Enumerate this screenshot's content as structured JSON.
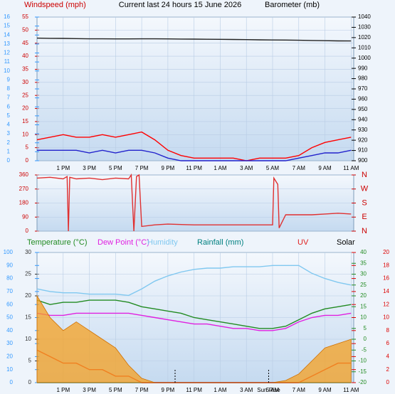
{
  "chart_data": [
    {
      "type": "line",
      "title": "Current last 24 hours 15 June 2026",
      "ylabel": "Windspeed (mph)",
      "y2label": "Barometer (mb)",
      "x": [
        0,
        1,
        2,
        3,
        4,
        5,
        6,
        7,
        8,
        9,
        10,
        11,
        12,
        13,
        14,
        15,
        16,
        17,
        18,
        19,
        20,
        21,
        22,
        23,
        24
      ],
      "xlim": [
        0,
        24.2
      ],
      "xticks": [
        {
          "value": 2,
          "label": "1 PM"
        },
        {
          "value": 4,
          "label": "3 PM"
        },
        {
          "value": 6,
          "label": "5 PM"
        },
        {
          "value": 8,
          "label": "7 PM"
        },
        {
          "value": 10,
          "label": "9 PM"
        },
        {
          "value": 12,
          "label": "11 PM"
        },
        {
          "value": 14,
          "label": "1 AM"
        },
        {
          "value": 16,
          "label": "3 AM"
        },
        {
          "value": 18,
          "label": "5 AM"
        },
        {
          "value": 20,
          "label": "7 AM"
        },
        {
          "value": 22,
          "label": "9 AM"
        },
        {
          "value": 24,
          "label": "11 AM"
        }
      ],
      "ylim": [
        0,
        55
      ],
      "yticks": [
        0,
        5,
        10,
        15,
        20,
        25,
        30,
        35,
        40,
        45,
        50,
        55
      ],
      "y2lim": [
        900,
        1040
      ],
      "y2ticks": [
        900,
        910,
        920,
        930,
        940,
        950,
        960,
        970,
        980,
        990,
        1000,
        1010,
        1020,
        1030,
        1040
      ],
      "y3lim": [
        0,
        16
      ],
      "y3ticks": [
        0,
        1,
        2,
        3,
        4,
        5,
        6,
        7,
        8,
        9,
        10,
        11,
        12,
        13,
        14,
        15,
        16
      ],
      "axis_colors": {
        "y": "#cc0000",
        "y2": "#000000",
        "y3": "#3399ff"
      },
      "grid": true,
      "series": [
        {
          "color": "#ff0000",
          "values": [
            8,
            9,
            10,
            9,
            9,
            10,
            9,
            10,
            11,
            8,
            4,
            2,
            1,
            1,
            1,
            1,
            0,
            1,
            1,
            1,
            2,
            5,
            7,
            8,
            9
          ]
        },
        {
          "color": "#2222cc",
          "values": [
            4,
            4,
            4,
            4,
            3,
            4,
            3,
            4,
            4,
            3,
            1,
            0,
            0,
            0,
            0,
            0,
            0,
            0,
            0,
            0,
            1,
            2,
            3,
            3,
            4
          ]
        },
        {
          "color": "#222222",
          "axis": "y2",
          "values": [
            1019.5,
            1019.3,
            1019.2,
            1019,
            1018.8,
            1018.8,
            1018.7,
            1018.7,
            1018.8,
            1018.8,
            1018.7,
            1018.6,
            1018.5,
            1018.4,
            1018.3,
            1018.2,
            1018,
            1017.8,
            1017.7,
            1017.6,
            1017.4,
            1017.2,
            1017,
            1016.8,
            1016.7
          ]
        }
      ]
    },
    {
      "type": "line",
      "x": [
        0,
        1,
        2,
        2.3,
        2.4,
        2.5,
        3,
        4,
        5,
        6,
        7,
        7.2,
        7.4,
        7.6,
        7.8,
        8,
        9,
        10,
        12,
        14,
        16,
        18,
        18.1,
        18.4,
        18.5,
        19,
        20,
        21,
        22,
        23,
        24
      ],
      "xlim": [
        0,
        24.2
      ],
      "ylim": [
        0,
        360
      ],
      "yticks": [
        0,
        90,
        180,
        270,
        360
      ],
      "y2lim": [
        0,
        360
      ],
      "y2ticks": [
        {
          "value": 0,
          "label": "N"
        },
        {
          "value": 90,
          "label": "E"
        },
        {
          "value": 180,
          "label": "S"
        },
        {
          "value": 270,
          "label": "W"
        },
        {
          "value": 360,
          "label": "N"
        }
      ],
      "axis_colors": {
        "y": "#cc0000",
        "y2": "#cc0000"
      },
      "grid": true,
      "series": [
        {
          "color": "#e03030",
          "values": [
            340,
            345,
            335,
            350,
            0,
            345,
            335,
            340,
            330,
            340,
            335,
            360,
            0,
            350,
            360,
            30,
            40,
            45,
            40,
            40,
            40,
            40,
            340,
            300,
            20,
            105,
            105,
            105,
            110,
            115,
            110
          ]
        }
      ]
    },
    {
      "type": "line",
      "x": [
        0,
        1,
        2,
        3,
        4,
        5,
        6,
        7,
        8,
        9,
        10,
        11,
        12,
        13,
        14,
        15,
        16,
        17,
        18,
        19,
        20,
        21,
        22,
        23,
        24
      ],
      "xlim": [
        0,
        24.2
      ],
      "xticks": [
        {
          "value": 2,
          "label": "1 PM"
        },
        {
          "value": 4,
          "label": "3 PM"
        },
        {
          "value": 6,
          "label": "5 PM"
        },
        {
          "value": 8,
          "label": "7 PM"
        },
        {
          "value": 10,
          "label": "9 PM"
        },
        {
          "value": 12,
          "label": "11 PM"
        },
        {
          "value": 14,
          "label": "1 AM"
        },
        {
          "value": 16,
          "label": "3 AM"
        },
        {
          "value": 18,
          "label": "5 AM"
        },
        {
          "value": 20,
          "label": "7 AM"
        },
        {
          "value": 22,
          "label": "9 AM"
        },
        {
          "value": 24,
          "label": "11 AM"
        }
      ],
      "ylim": [
        0,
        30
      ],
      "yticks": [
        0,
        5,
        10,
        15,
        20,
        25,
        30
      ],
      "y2lim": [
        -20,
        40
      ],
      "y2ticks": [
        -20,
        -15,
        -10,
        -5,
        0,
        5,
        10,
        15,
        20,
        25,
        30,
        35,
        40
      ],
      "y3lim": [
        0,
        100
      ],
      "y3ticks": [
        0,
        10,
        20,
        30,
        40,
        50,
        60,
        70,
        80,
        90,
        100
      ],
      "y4lim": [
        0,
        20
      ],
      "y4ticks": [
        0,
        2,
        4,
        6,
        8,
        10,
        12,
        14,
        16,
        18,
        20
      ],
      "axis_colors": {
        "y": "#333333",
        "y2": "#228b22",
        "y3": "#3399ff",
        "y4": "#dd0000"
      },
      "grid": true,
      "annotations": [
        {
          "text": "Sun Rise",
          "x": 17.7
        }
      ],
      "series": [
        {
          "name": "Temperature (°C)",
          "color": "#228b22",
          "values": [
            19,
            18,
            18.5,
            18.5,
            19,
            19,
            19,
            18.5,
            17.5,
            17,
            16.5,
            16,
            15,
            14.5,
            14,
            13.5,
            13,
            12.5,
            12.5,
            13,
            14.5,
            16,
            17,
            17.5,
            18
          ]
        },
        {
          "name": "Dew Point (°C)",
          "color": "#e020e0",
          "values": [
            16,
            15.5,
            15.5,
            16,
            16,
            16,
            16,
            16,
            15.5,
            15,
            14.5,
            14,
            13.5,
            13.5,
            13,
            12.5,
            12.5,
            12,
            12,
            12.5,
            14,
            15,
            15.5,
            15.5,
            16
          ]
        },
        {
          "name": "Humidity",
          "color": "#80c8f0",
          "axis": "y3",
          "values": [
            72,
            70,
            69,
            69,
            68,
            68,
            68,
            67,
            72,
            78,
            82,
            85,
            87,
            88,
            88,
            89,
            89,
            89,
            90,
            90,
            90,
            84,
            80,
            77,
            75
          ]
        },
        {
          "name": "Rainfall (mm)",
          "color": "#008080",
          "values": [
            0,
            0,
            0,
            0,
            0,
            0,
            0,
            0,
            0,
            0,
            0,
            0,
            0,
            0,
            0,
            0,
            0,
            0,
            0,
            0,
            0,
            0,
            0,
            0,
            0
          ]
        },
        {
          "name": "UV",
          "color": "#e02020",
          "axis": "y4",
          "values": [
            5,
            4,
            3,
            3,
            2,
            2,
            1,
            1,
            0,
            0,
            0,
            0,
            0,
            0,
            0,
            0,
            0,
            0,
            0,
            0,
            0,
            1,
            2,
            3,
            3
          ]
        },
        {
          "name": "Solar",
          "color": "#f5a020",
          "style": "area",
          "values": [
            20,
            15,
            12,
            14,
            12,
            10,
            8,
            4,
            1,
            0,
            0,
            0,
            0,
            0,
            0,
            0,
            0,
            0,
            0,
            0.5,
            2,
            5,
            8,
            9,
            10
          ]
        }
      ]
    }
  ]
}
